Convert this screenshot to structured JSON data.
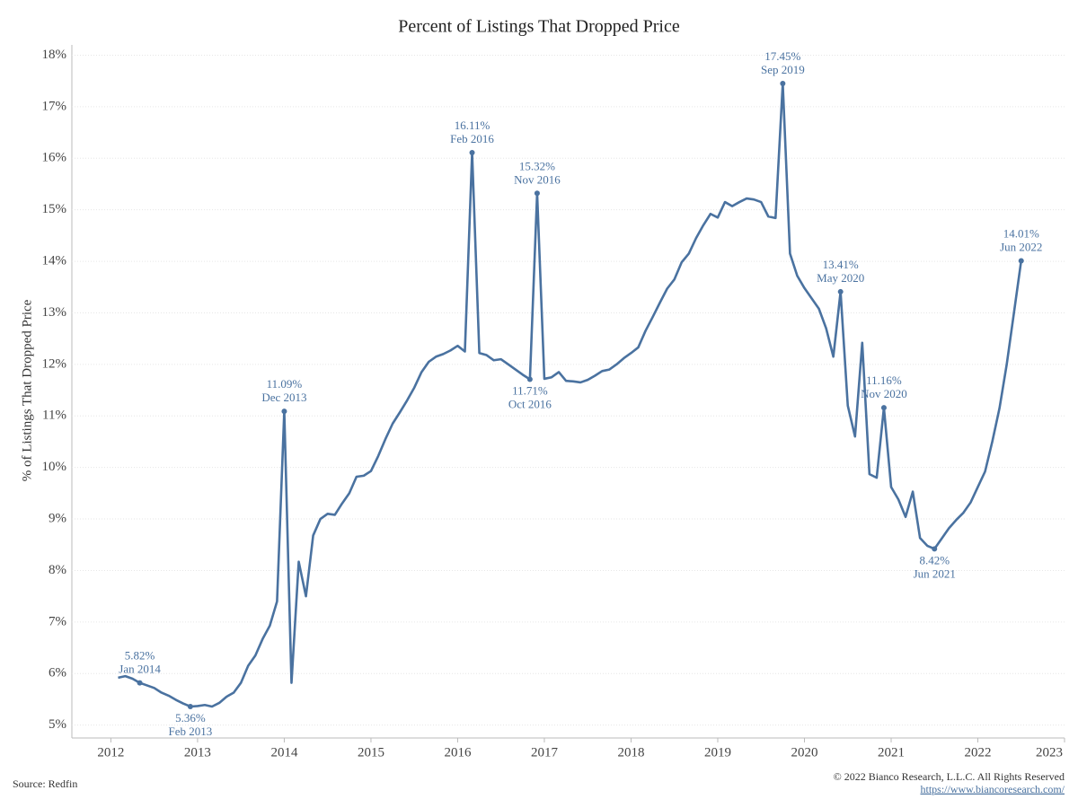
{
  "chart_data": {
    "type": "line",
    "title": "Percent of Listings That Dropped Price",
    "y_label": "% of Listings That Dropped Price",
    "source": "Source: Redfin",
    "copyright": "© 2022 Bianco Research, L.L.C. All Rights Reserved",
    "url": "https://www.biancoresearch.com/",
    "grid": true,
    "xlim": [
      2011.55,
      2023.0
    ],
    "xticks": [
      2012,
      2013,
      2014,
      2015,
      2016,
      2017,
      2018,
      2019,
      2020,
      2021,
      2022,
      2023
    ],
    "ylim": [
      4.75,
      18.2
    ],
    "yticks": [
      {
        "value": 5,
        "label": "5%"
      },
      {
        "value": 6,
        "label": "6%"
      },
      {
        "value": 7,
        "label": "7%"
      },
      {
        "value": 8,
        "label": "8%"
      },
      {
        "value": 9,
        "label": "9%"
      },
      {
        "value": 10,
        "label": "10%"
      },
      {
        "value": 11,
        "label": "11%"
      },
      {
        "value": 12,
        "label": "12%"
      },
      {
        "value": 13,
        "label": "13%"
      },
      {
        "value": 14,
        "label": "14%"
      },
      {
        "value": 15,
        "label": "15%"
      },
      {
        "value": 16,
        "label": "16%"
      },
      {
        "value": 17,
        "label": "17%"
      },
      {
        "value": 18,
        "label": "18%"
      }
    ],
    "x": [
      "2012-01",
      "2012-02",
      "2012-03",
      "2012-04",
      "2012-05",
      "2012-06",
      "2012-07",
      "2012-08",
      "2012-09",
      "2012-10",
      "2012-11",
      "2012-12",
      "2013-01",
      "2013-02",
      "2013-03",
      "2013-04",
      "2013-05",
      "2013-06",
      "2013-07",
      "2013-08",
      "2013-09",
      "2013-10",
      "2013-11",
      "2013-12",
      "2014-01",
      "2014-02",
      "2014-03",
      "2014-04",
      "2014-05",
      "2014-06",
      "2014-07",
      "2014-08",
      "2014-09",
      "2014-10",
      "2014-11",
      "2014-12",
      "2015-01",
      "2015-02",
      "2015-03",
      "2015-04",
      "2015-05",
      "2015-06",
      "2015-07",
      "2015-08",
      "2015-09",
      "2015-10",
      "2015-11",
      "2015-12",
      "2016-01",
      "2016-02",
      "2016-03",
      "2016-04",
      "2016-05",
      "2016-06",
      "2016-07",
      "2016-08",
      "2016-09",
      "2016-10",
      "2016-11",
      "2016-12",
      "2017-01",
      "2017-02",
      "2017-03",
      "2017-04",
      "2017-05",
      "2017-06",
      "2017-07",
      "2017-08",
      "2017-09",
      "2017-10",
      "2017-11",
      "2017-12",
      "2018-01",
      "2018-02",
      "2018-03",
      "2018-04",
      "2018-05",
      "2018-06",
      "2018-07",
      "2018-08",
      "2018-09",
      "2018-10",
      "2018-11",
      "2018-12",
      "2019-01",
      "2019-02",
      "2019-03",
      "2019-04",
      "2019-05",
      "2019-06",
      "2019-07",
      "2019-08",
      "2019-09",
      "2019-10",
      "2019-11",
      "2019-12",
      "2020-01",
      "2020-02",
      "2020-03",
      "2020-04",
      "2020-05",
      "2020-06",
      "2020-07",
      "2020-08",
      "2020-09",
      "2020-10",
      "2020-11",
      "2020-12",
      "2021-01",
      "2021-02",
      "2021-03",
      "2021-04",
      "2021-05",
      "2021-06",
      "2021-07",
      "2021-08",
      "2021-09",
      "2021-10",
      "2021-11",
      "2021-12",
      "2022-01",
      "2022-02",
      "2022-03",
      "2022-04",
      "2022-05",
      "2022-06"
    ],
    "series": [
      {
        "name": "% of Listings That Dropped Price",
        "color": "#4a72a0",
        "values": [
          5.92,
          5.95,
          5.9,
          5.82,
          5.77,
          5.72,
          5.63,
          5.57,
          5.49,
          5.42,
          5.36,
          5.37,
          5.39,
          5.36,
          5.43,
          5.55,
          5.63,
          5.82,
          6.15,
          6.35,
          6.67,
          6.93,
          7.4,
          11.09,
          5.82,
          8.17,
          7.5,
          8.68,
          9.0,
          9.1,
          9.08,
          9.3,
          9.5,
          9.82,
          9.84,
          9.93,
          10.22,
          10.55,
          10.85,
          11.07,
          11.3,
          11.55,
          11.85,
          12.05,
          12.15,
          12.2,
          12.27,
          12.36,
          12.25,
          16.11,
          12.22,
          12.18,
          12.08,
          12.1,
          12.0,
          11.9,
          11.8,
          11.71,
          15.32,
          11.72,
          11.75,
          11.85,
          11.68,
          11.67,
          11.65,
          11.7,
          11.78,
          11.87,
          11.9,
          12.0,
          12.12,
          12.22,
          12.33,
          12.65,
          12.92,
          13.2,
          13.47,
          13.65,
          13.98,
          14.15,
          14.45,
          14.7,
          14.92,
          14.85,
          15.15,
          15.07,
          15.15,
          15.22,
          15.2,
          15.15,
          14.87,
          14.84,
          17.45,
          14.15,
          13.72,
          13.48,
          13.28,
          13.08,
          12.7,
          12.15,
          13.41,
          11.2,
          10.6,
          12.42,
          9.87,
          9.8,
          11.16,
          9.62,
          9.38,
          9.04,
          9.53,
          8.63,
          8.48,
          8.42,
          8.62,
          8.82,
          8.98,
          9.12,
          9.32,
          9.62,
          9.92,
          10.5,
          11.15,
          12.0,
          13.0,
          14.01
        ]
      }
    ],
    "annotations": [
      {
        "label": "5.36%",
        "date": "Feb 2013"
      },
      {
        "label": "11.09%",
        "date": "Dec 2013"
      },
      {
        "label": "5.82%",
        "date": "Jan 2014"
      },
      {
        "label": "16.11%",
        "date": "Feb 2016"
      },
      {
        "label": "11.71%",
        "date": "Oct 2016"
      },
      {
        "label": "15.32%",
        "date": "Nov 2016"
      },
      {
        "label": "17.45%",
        "date": "Sep 2019"
      },
      {
        "label": "13.41%",
        "date": "May 2020"
      },
      {
        "label": "11.16%",
        "date": "Nov 2020"
      },
      {
        "label": "8.42%",
        "date": "Jun 2021"
      },
      {
        "label": "14.01%",
        "date": "Jun 2022"
      }
    ]
  }
}
